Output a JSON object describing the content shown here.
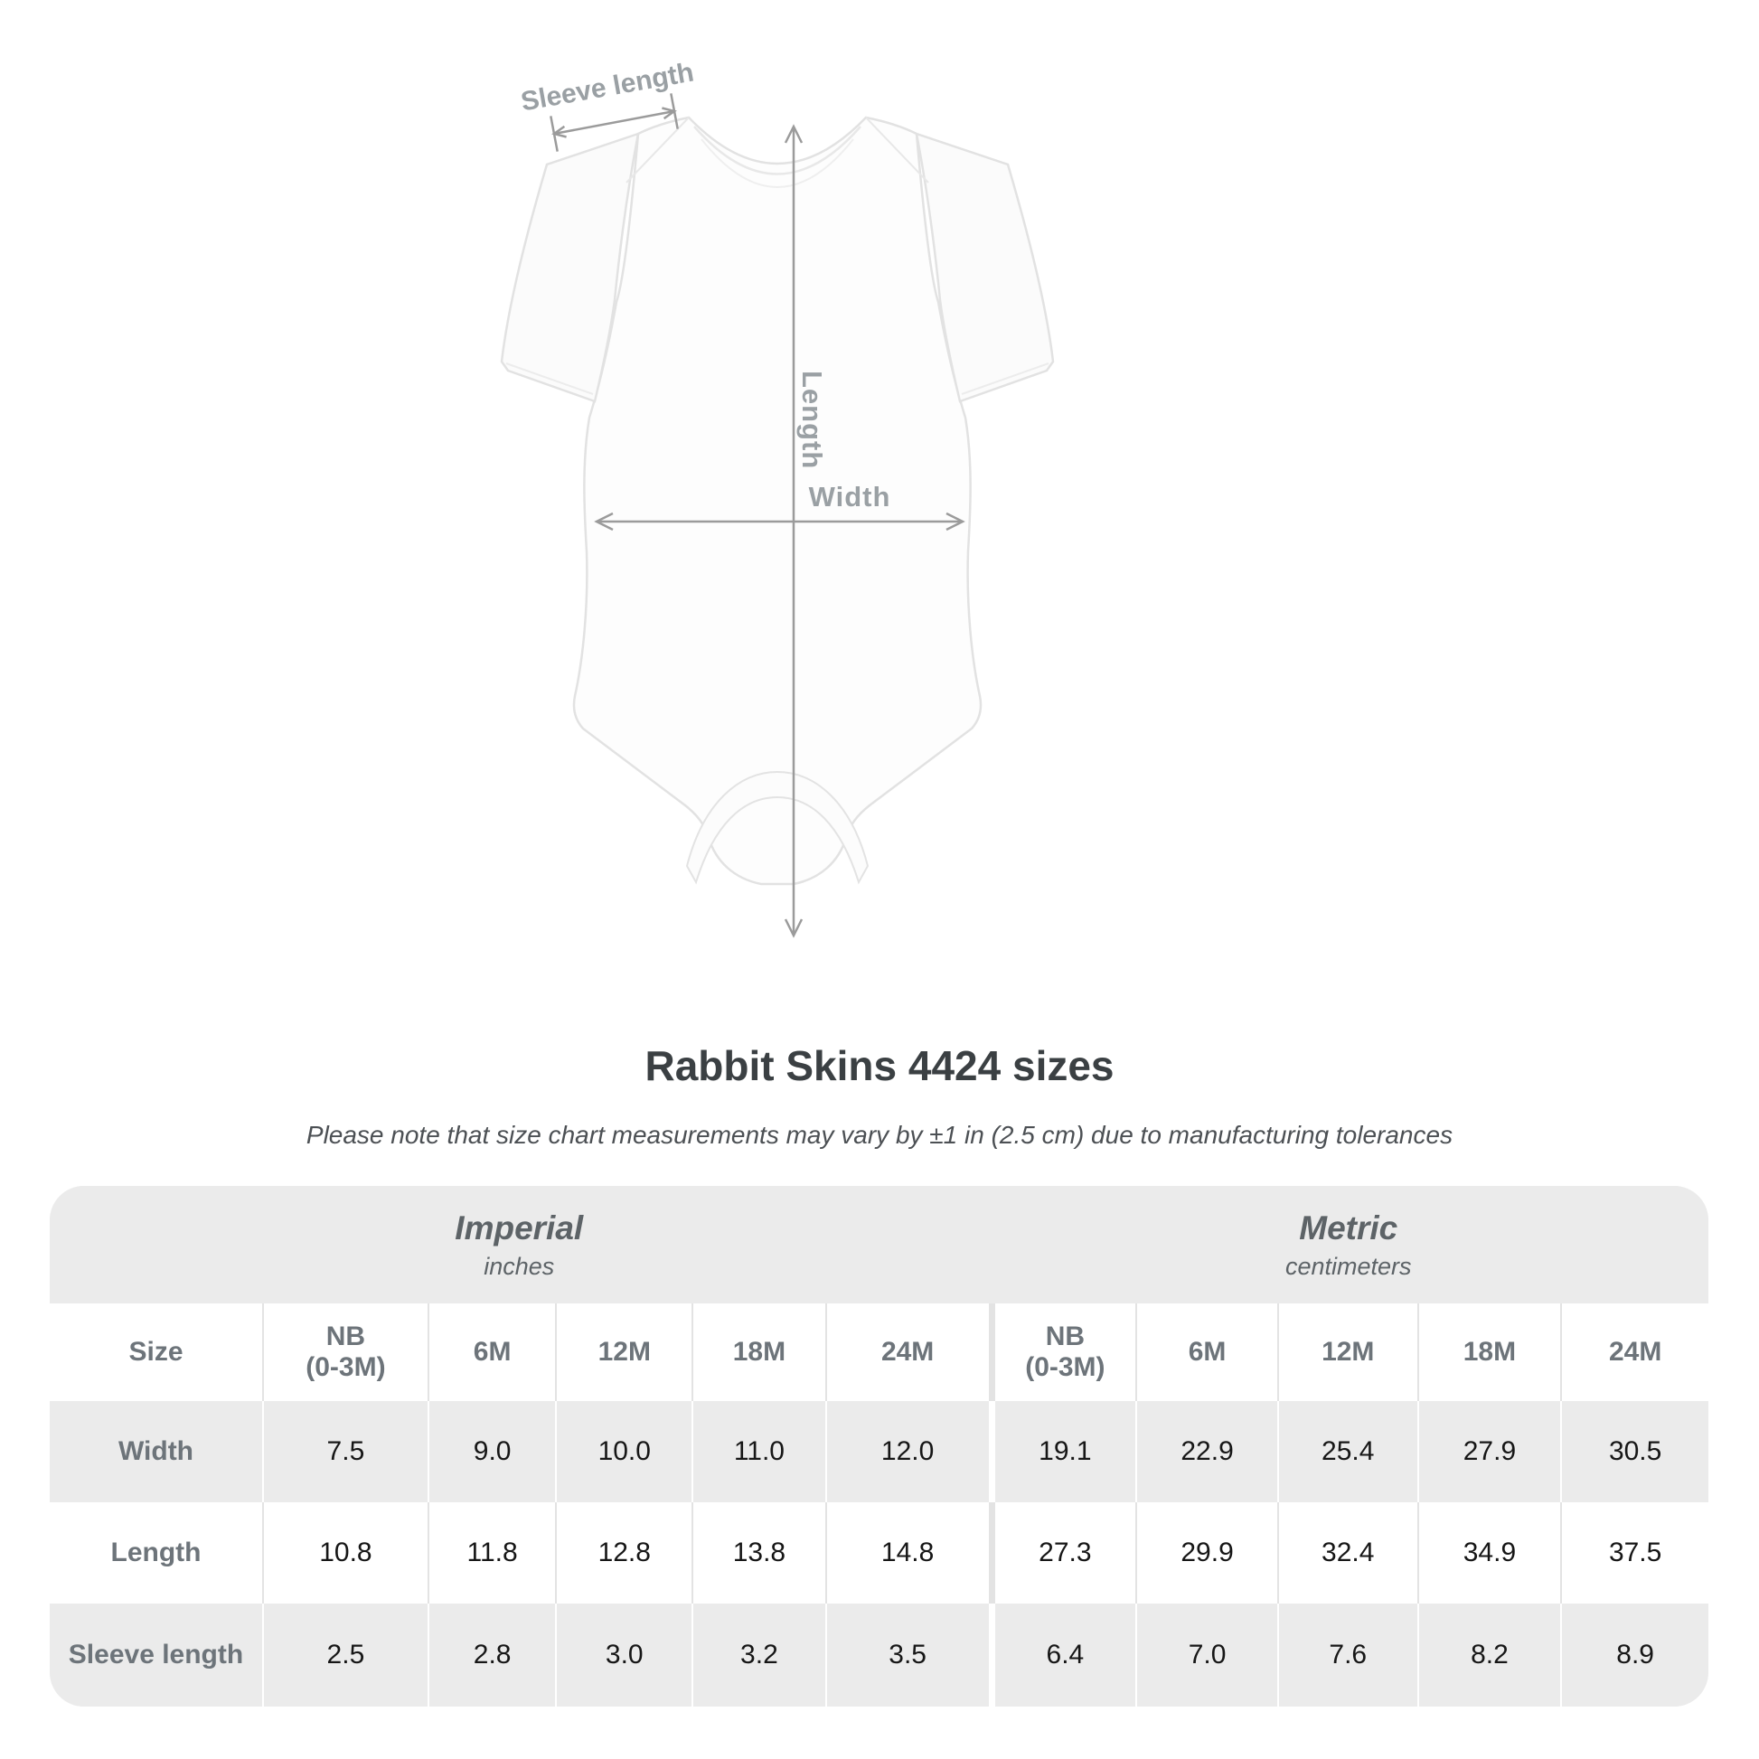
{
  "diagram": {
    "sleeve_label": "Sleeve length",
    "length_label": "Length",
    "width_label": "Width",
    "line_color": "#9b9b9b",
    "garment_outline_color": "#e2e2e2"
  },
  "chart_data": {
    "type": "table",
    "title": "Rabbit Skins 4424 sizes",
    "note": "Please note that size chart measurements may vary by ±1 in (2.5 cm) due to manufacturing tolerances",
    "sections": [
      {
        "name": "Imperial",
        "unit": "inches"
      },
      {
        "name": "Metric",
        "unit": "centimeters"
      }
    ],
    "size_label": "Size",
    "columns": [
      "NB\n(0-3M)",
      "6M",
      "12M",
      "18M",
      "24M",
      "NB\n(0-3M)",
      "6M",
      "12M",
      "18M",
      "24M"
    ],
    "rows": [
      {
        "label": "Width",
        "values": [
          "7.5",
          "9.0",
          "10.0",
          "11.0",
          "12.0",
          "19.1",
          "22.9",
          "25.4",
          "27.9",
          "30.5"
        ]
      },
      {
        "label": "Length",
        "values": [
          "10.8",
          "11.8",
          "12.8",
          "13.8",
          "14.8",
          "27.3",
          "29.9",
          "32.4",
          "34.9",
          "37.5"
        ]
      },
      {
        "label": "Sleeve length",
        "values": [
          "2.5",
          "2.8",
          "3.0",
          "3.2",
          "3.5",
          "6.4",
          "7.0",
          "7.6",
          "8.2",
          "8.9"
        ]
      }
    ],
    "colors": {
      "table_band": "#ebebeb",
      "divider_on_white": "#e3e3e3",
      "divider_on_gray": "#ffffff",
      "header_text": "#6d747a",
      "value_text": "#161616",
      "title_text": "#3b4043"
    }
  }
}
